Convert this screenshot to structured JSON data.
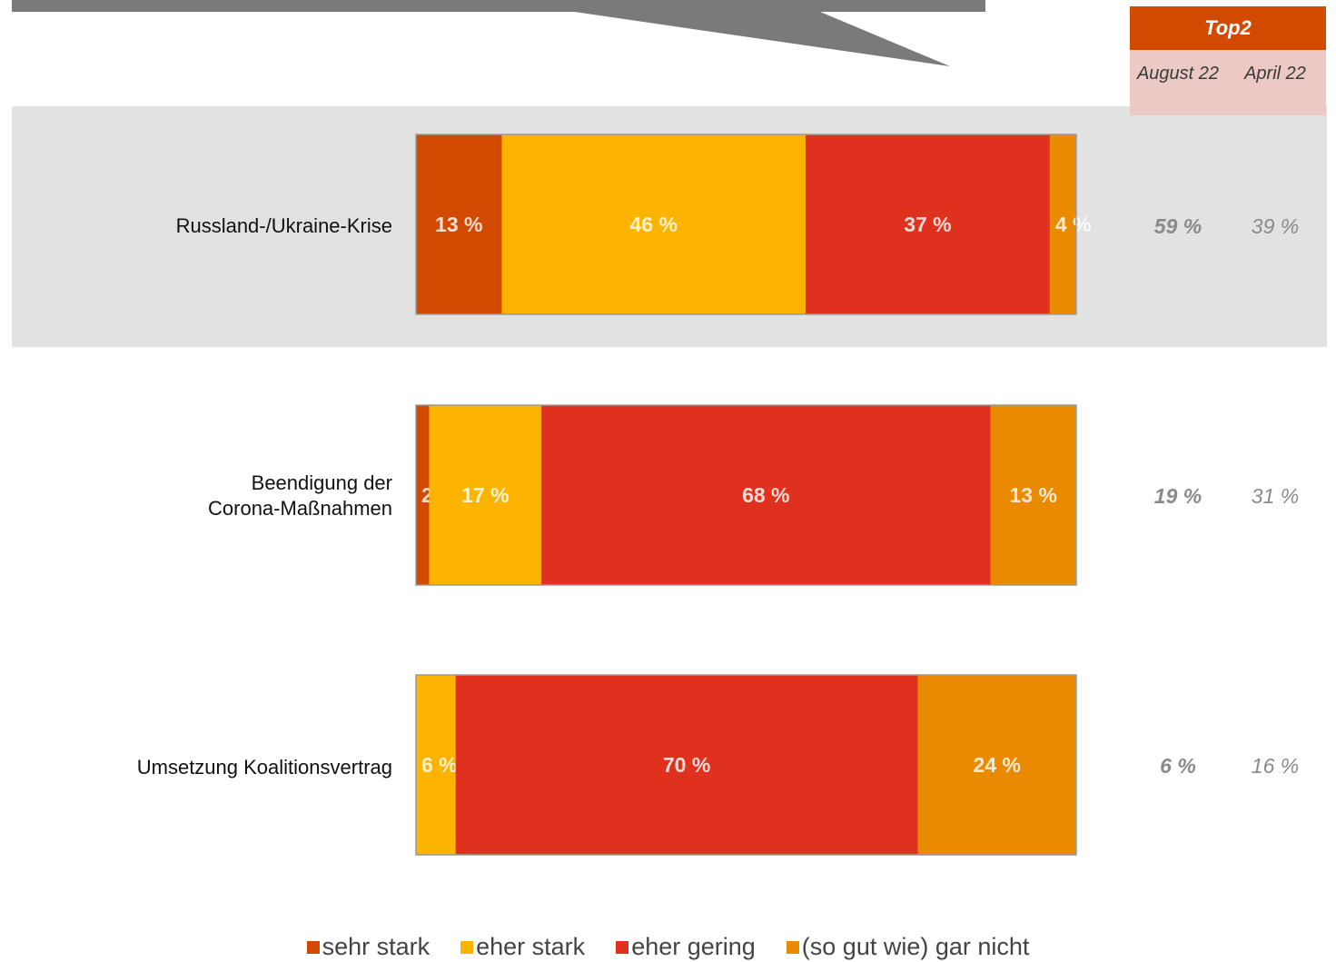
{
  "top2": {
    "header": "Top2",
    "col_august": "August\n22",
    "col_april": "April\n22"
  },
  "colors": {
    "sehr_stark": "#d24a00",
    "eher_stark": "#fcb400",
    "eher_gering": "#e0311e",
    "gar_nicht": "#e98a00",
    "highlight": "#e2e2e2",
    "callout": "#7a7a7a"
  },
  "chart_data": {
    "type": "bar",
    "orientation": "horizontal",
    "stacked": true,
    "xlim": [
      0,
      100
    ],
    "categories": [
      "Russland-/Ukraine-Krise",
      "Beendigung der\nCorona-Maßnahmen",
      "Umsetzung Koalitionsvertrag"
    ],
    "series": [
      {
        "name": "sehr stark",
        "values": [
          13,
          2,
          0
        ],
        "labels": [
          "13 %",
          "2 %",
          ""
        ]
      },
      {
        "name": "eher stark",
        "values": [
          46,
          17,
          6
        ],
        "labels": [
          "46 %",
          "17 %",
          "6 %"
        ]
      },
      {
        "name": "eher gering",
        "values": [
          37,
          68,
          70
        ],
        "labels": [
          "37 %",
          "68 %",
          "70 %"
        ]
      },
      {
        "name": "(so gut wie) gar nicht",
        "values": [
          4,
          13,
          24
        ],
        "labels": [
          "4 %",
          "13 %",
          "24 %"
        ]
      }
    ],
    "top2_august": [
      "59 %",
      "19 %",
      "6 %"
    ],
    "top2_april": [
      "39 %",
      "31 %",
      "16 %"
    ],
    "highlighted_category": "Russland-/Ukraine-Krise",
    "legend_position": "bottom"
  }
}
